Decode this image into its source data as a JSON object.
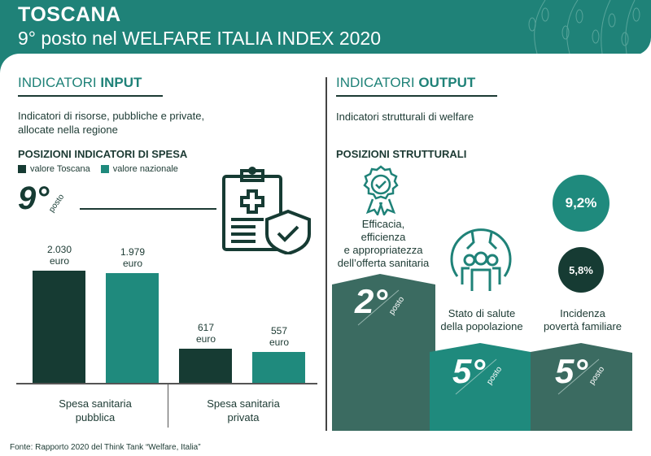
{
  "header": {
    "title": "TOSCANA",
    "subtitle": "9° posto nel WELFARE ITALIA INDEX 2020"
  },
  "input": {
    "heading_a": "INDICATORI ",
    "heading_b": "INPUT",
    "description_1": "Indicatori di risorse, pubbliche e private,",
    "description_2": "allocate nella regione",
    "subheading": "POSIZIONI INDICATORI DI SPESA",
    "legend": [
      "valore Toscana",
      "valore nazionale"
    ],
    "rank": "9°",
    "rank_word": "posto"
  },
  "output": {
    "heading_a": "INDICATORI ",
    "heading_b": "OUTPUT",
    "description": "Indicatori strutturali di welfare",
    "subheading": "POSIZIONI STRUTTURALI",
    "items": [
      {
        "label_lines": [
          "Efficacia,",
          "efficienza",
          "e appropriatezza",
          "dell’offerta sanitaria"
        ],
        "rank": "2°",
        "rank_word": "posto"
      },
      {
        "label_lines": [
          "Stato di salute",
          "della popolazione"
        ],
        "rank": "5°",
        "rank_word": "posto"
      },
      {
        "label_lines": [
          "Incidenza",
          "povertà familiare"
        ],
        "rank": "5°",
        "rank_word": "posto",
        "values": [
          "9,2%",
          "5,8%"
        ]
      }
    ]
  },
  "colors": {
    "header": "#1f8278",
    "toscana": "#163b33",
    "nazionale": "#1f8a7d",
    "step_dark": "#3b6b61"
  },
  "chart_data": {
    "type": "bar",
    "categories": [
      "Spesa sanitaria pubblica",
      "Spesa sanitaria privata"
    ],
    "category_lines": [
      [
        "Spesa sanitaria",
        "pubblica"
      ],
      [
        "Spesa sanitaria",
        "privata"
      ]
    ],
    "series": [
      {
        "name": "valore Toscana",
        "values": [
          2030,
          617
        ],
        "labels": [
          "2.030",
          "617"
        ]
      },
      {
        "name": "valore nazionale",
        "values": [
          1979,
          557
        ],
        "labels": [
          "1.979",
          "557"
        ]
      }
    ],
    "unit": "euro",
    "legend": "top-left"
  },
  "source": "Fonte: Rapporto 2020 del Think Tank “Welfare, Italia”"
}
